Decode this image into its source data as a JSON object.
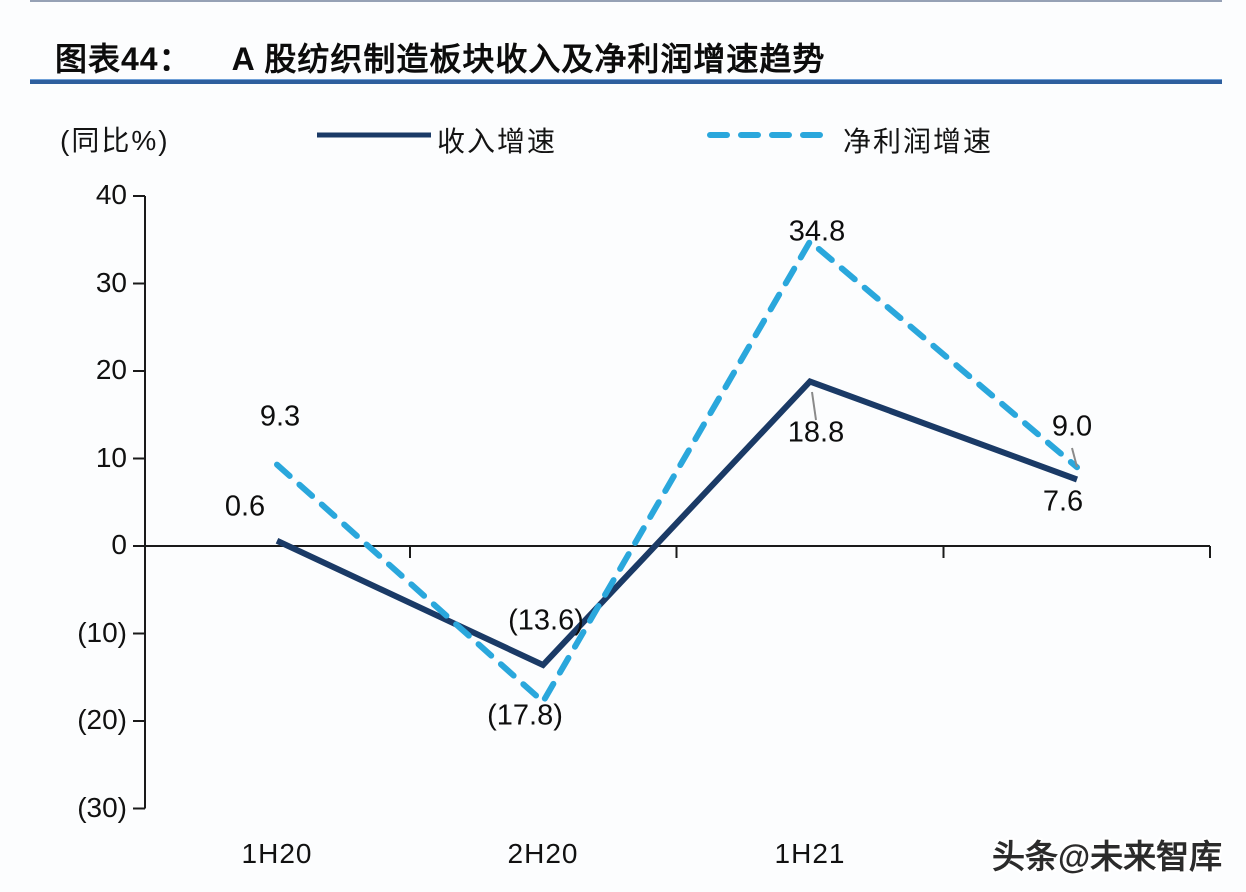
{
  "header": {
    "label": "图表44：",
    "title": "A 股纺织制造板块收入及净利润增速趋势"
  },
  "watermark": "头条@未来智库",
  "chart_data": {
    "type": "line",
    "categories": [
      "1H20",
      "2H20",
      "1H21",
      ""
    ],
    "categories_note": "4th category label hidden behind watermark",
    "series": [
      {
        "name": "收入增速",
        "values": [
          0.6,
          -13.6,
          18.8,
          7.6
        ],
        "labels": [
          "0.6",
          "(13.6)",
          "18.8",
          "7.6"
        ],
        "color": "#1a3a66",
        "dash": false
      },
      {
        "name": "净利润增速",
        "values": [
          9.3,
          -17.8,
          34.8,
          9.0
        ],
        "labels": [
          "9.3",
          "(17.8)",
          "34.8",
          "9.0"
        ],
        "color": "#2aa7dc",
        "dash": true
      }
    ],
    "ylabel": "(同比%)",
    "y_ticks": [
      "40",
      "30",
      "20",
      "10",
      "0",
      "(10)",
      "(20)",
      "(30)"
    ],
    "y_tick_values": [
      40,
      30,
      20,
      10,
      0,
      -10,
      -20,
      -30
    ],
    "ylim": [
      -30,
      40
    ],
    "negative_format": "parentheses",
    "grid": false,
    "legend_position": "top",
    "axis_color": "#1a1a1a"
  }
}
